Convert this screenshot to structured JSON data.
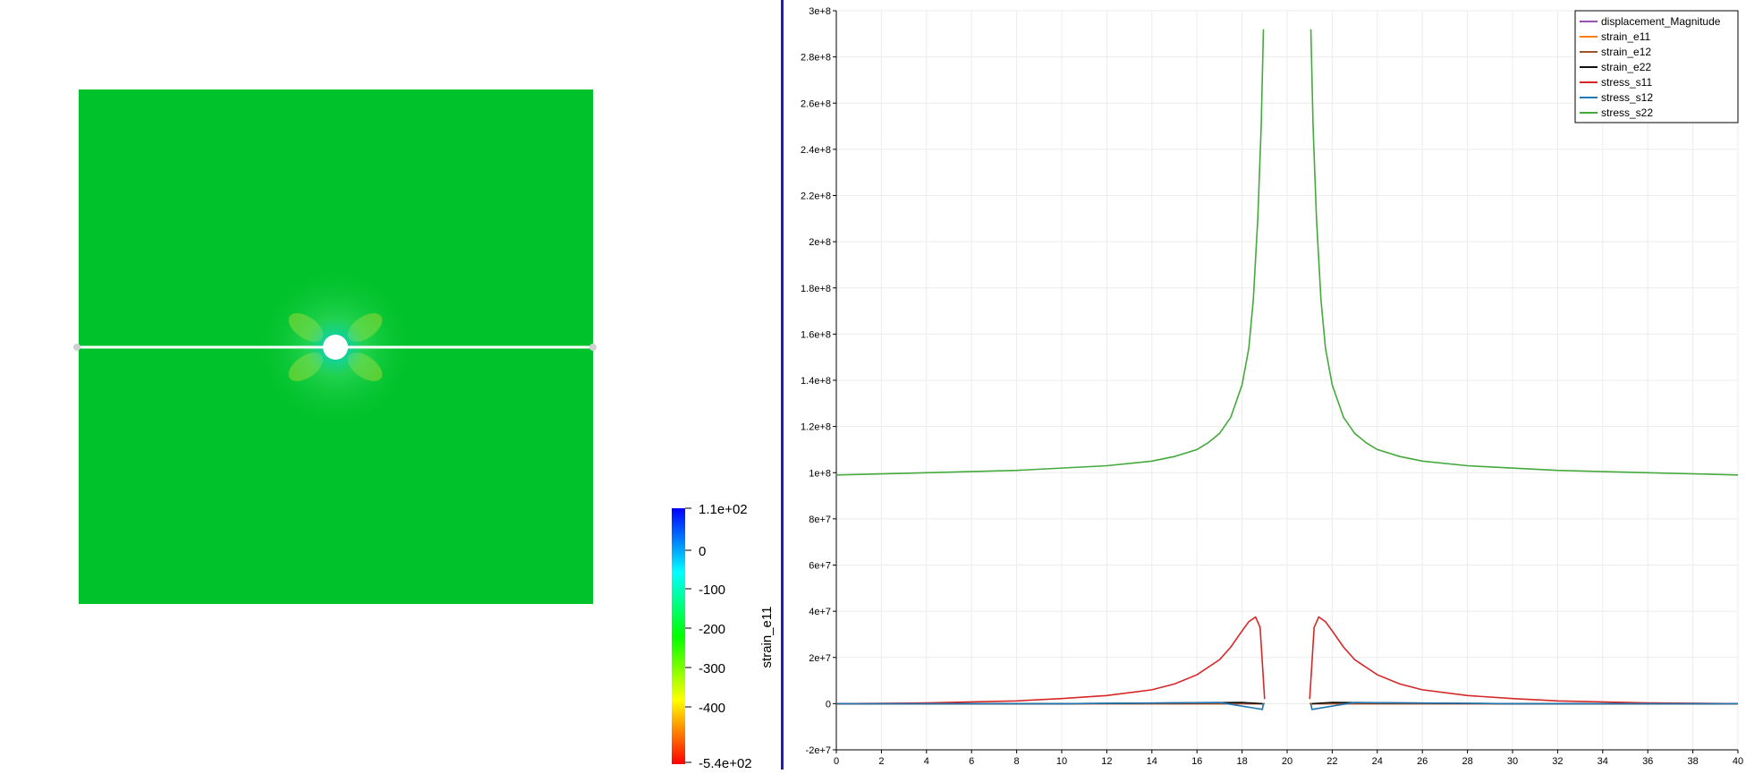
{
  "render_view": {
    "colorbar": {
      "title": "strain_e11",
      "labels": [
        "1.1e+02",
        "0",
        "-100",
        "-200",
        "-300",
        "-400",
        "-5.4e+02"
      ],
      "colors": [
        "#0000ff",
        "#00ffff",
        "#00ff00",
        "#ffff00",
        "#ff0000"
      ]
    },
    "plate_color": "#00c22a"
  },
  "chart_data": {
    "type": "line",
    "xlim": [
      0,
      40
    ],
    "ylim": [
      -20000000,
      300000000
    ],
    "x_ticks": [
      "0",
      "2",
      "4",
      "6",
      "8",
      "10",
      "12",
      "14",
      "16",
      "18",
      "20",
      "22",
      "24",
      "26",
      "28",
      "30",
      "32",
      "34",
      "36",
      "38",
      "40"
    ],
    "y_ticks": [
      "-2e+7",
      "0",
      "2e+7",
      "4e+7",
      "6e+7",
      "8e+7",
      "1e+8",
      "1.2e+8",
      "1.4e+8",
      "1.6e+8",
      "1.8e+8",
      "2e+8",
      "2.2e+8",
      "2.4e+8",
      "2.6e+8",
      "2.8e+8",
      "3e+8"
    ],
    "grid": true,
    "legend_position": "top-right",
    "series": [
      {
        "name": "displacement_Magnitude",
        "color": "#9c4fb3",
        "x": [
          0,
          19,
          21,
          40
        ],
        "y": [
          0,
          0,
          0,
          0
        ]
      },
      {
        "name": "strain_e11",
        "color": "#ff7f0e",
        "x": [
          0,
          19,
          21,
          40
        ],
        "y": [
          0,
          0,
          0,
          0
        ]
      },
      {
        "name": "strain_e12",
        "color": "#a0522d",
        "x": [
          0,
          19,
          21,
          40
        ],
        "y": [
          0,
          0,
          0,
          0
        ]
      },
      {
        "name": "strain_e22",
        "color": "#111111",
        "x": [
          0,
          10,
          18,
          18.9,
          21.1,
          22,
          30,
          40
        ],
        "y": [
          0,
          0,
          500000,
          0,
          0,
          500000,
          0,
          0
        ]
      },
      {
        "name": "stress_s11",
        "color": "#d62728",
        "x": [
          0,
          4,
          8,
          10,
          12,
          14,
          15,
          16,
          17,
          17.5,
          18,
          18.3,
          18.6,
          18.8,
          19,
          21,
          21.2,
          21.4,
          21.7,
          22,
          22.5,
          23,
          24,
          25,
          26,
          28,
          30,
          32,
          36,
          40
        ],
        "y": [
          0,
          300000,
          1200000,
          2200000,
          3500000,
          6000000,
          8500000,
          12500000,
          19000000,
          24500000,
          31500000,
          35500000,
          37500000,
          33000000,
          2000000,
          2000000,
          33000000,
          37500000,
          35500000,
          31500000,
          24500000,
          19000000,
          12500000,
          8500000,
          6000000,
          3500000,
          2200000,
          1200000,
          300000,
          0
        ]
      },
      {
        "name": "stress_s12",
        "color": "#1f77b4",
        "x": [
          0,
          10,
          17,
          18.9,
          18.95,
          21.05,
          21.1,
          23,
          30,
          40
        ],
        "y": [
          0,
          0,
          500000,
          -2500000,
          0,
          0,
          -2500000,
          500000,
          0,
          0
        ]
      },
      {
        "name": "stress_s22",
        "color": "#44aa3c",
        "x": [
          0,
          4,
          8,
          12,
          14,
          15,
          16,
          16.5,
          17,
          17.5,
          18,
          18.3,
          18.5,
          18.7,
          18.85,
          18.95,
          21.05,
          21.15,
          21.3,
          21.5,
          21.7,
          22,
          22.5,
          23,
          23.5,
          24,
          25,
          26,
          28,
          32,
          36,
          40
        ],
        "y": [
          99000000,
          100000000,
          101000000,
          103000000,
          105000000,
          107000000,
          110000000,
          113000000,
          117000000,
          124000000,
          138000000,
          154000000,
          175000000,
          210000000,
          250000000,
          292000000,
          292000000,
          250000000,
          210000000,
          175000000,
          154000000,
          138000000,
          124000000,
          117000000,
          113000000,
          110000000,
          107000000,
          105000000,
          103000000,
          101000000,
          100000000,
          99000000
        ]
      }
    ]
  }
}
